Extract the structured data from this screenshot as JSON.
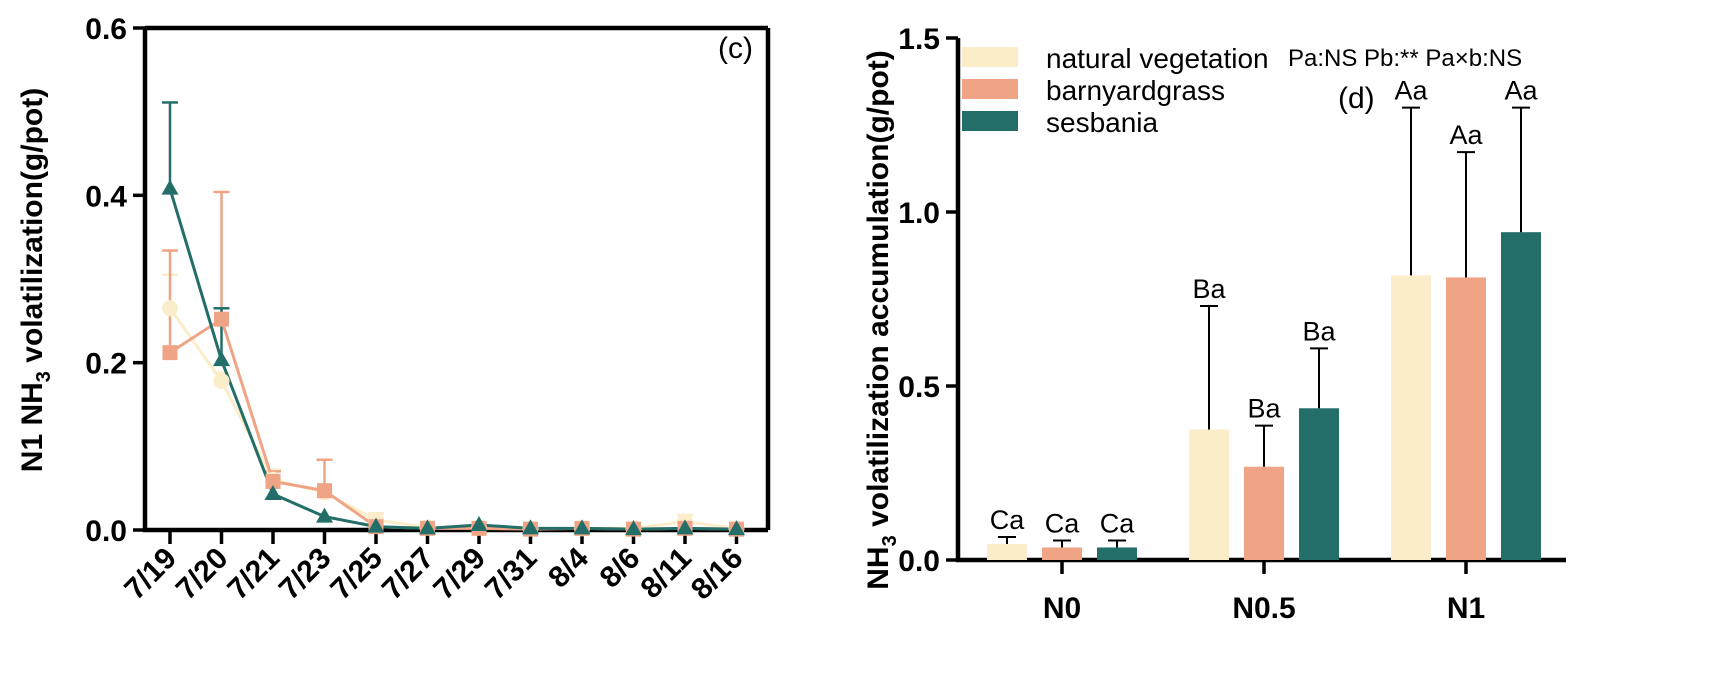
{
  "chart_data": [
    {
      "type": "line",
      "panel_label": "(c)",
      "ylabel_prefix": "N1 NH",
      "ylabel_sub": "3",
      "ylabel_suffix": " volatilization(g/pot)",
      "ylim": [
        0,
        0.6
      ],
      "yticks": [
        "0.0",
        "0.2",
        "0.4",
        "0.6"
      ],
      "ytick_values": [
        0,
        0.2,
        0.4,
        0.6
      ],
      "categories": [
        "7/19",
        "7/20",
        "7/21",
        "7/23",
        "7/25",
        "7/27",
        "7/29",
        "7/31",
        "8/4",
        "8/6",
        "8/11",
        "8/16"
      ],
      "series": [
        {
          "name": "natural vegetation",
          "color": "#FCEDCA",
          "marker": "circle",
          "values": [
            0.265,
            0.178,
            0.06,
            0.045,
            0.012,
            0.003,
            0.003,
            0.002,
            0.002,
            0.002,
            0.01,
            0.002
          ],
          "errors": [
            0.04,
            0.01,
            0.012,
            0.006,
            0.008,
            0.002,
            0.002,
            0.001,
            0.001,
            0.001,
            0.008,
            0.001
          ]
        },
        {
          "name": "barnyardgrass",
          "color": "#EFA585",
          "marker": "square",
          "values": [
            0.212,
            0.252,
            0.058,
            0.047,
            0.004,
            0.002,
            0.002,
            0.001,
            0.002,
            0.001,
            0.002,
            0.001
          ],
          "errors": [
            0.122,
            0.152,
            0.012,
            0.037,
            0.002,
            0.001,
            0.001,
            0.001,
            0.001,
            0.001,
            0.001,
            0.001
          ]
        },
        {
          "name": "sesbania",
          "color": "#236E69",
          "marker": "triangle",
          "values": [
            0.408,
            0.203,
            0.043,
            0.016,
            0.004,
            0.002,
            0.006,
            0.002,
            0.002,
            0.001,
            0.002,
            0.001
          ],
          "errors": [
            0.103,
            0.062,
            0.004,
            0.002,
            0.001,
            0.001,
            0.001,
            0.001,
            0.001,
            0.001,
            0.001,
            0.001
          ]
        }
      ]
    },
    {
      "type": "bar",
      "panel_label": "(d)",
      "ylabel_prefix": "NH",
      "ylabel_sub": "3",
      "ylabel_suffix": " volatilization accumulation(g/pot)",
      "ylim": [
        0,
        1.5
      ],
      "yticks": [
        "0.0",
        "0.5",
        "1.0",
        "1.5"
      ],
      "ytick_values": [
        0,
        0.5,
        1.0,
        1.5
      ],
      "categories": [
        "N0",
        "N0.5",
        "N1"
      ],
      "stats_text": "Pa:NS Pb:** Pa×b:NS",
      "series": [
        {
          "name": "natural vegetation",
          "color": "#FCEDCA",
          "values": [
            0.046,
            0.375,
            0.818
          ],
          "errors": [
            0.02,
            0.355,
            0.482
          ],
          "labels": [
            "Ca",
            "Ba",
            "Aa"
          ]
        },
        {
          "name": "barnyardgrass",
          "color": "#EFA585",
          "values": [
            0.036,
            0.268,
            0.812
          ],
          "errors": [
            0.02,
            0.118,
            0.36
          ],
          "labels": [
            "Ca",
            "Ba",
            "Aa"
          ]
        },
        {
          "name": "sesbania",
          "color": "#236E69",
          "values": [
            0.036,
            0.436,
            0.942
          ],
          "errors": [
            0.02,
            0.172,
            0.358
          ],
          "labels": [
            "Ca",
            "Ba",
            "Aa"
          ]
        }
      ]
    }
  ]
}
